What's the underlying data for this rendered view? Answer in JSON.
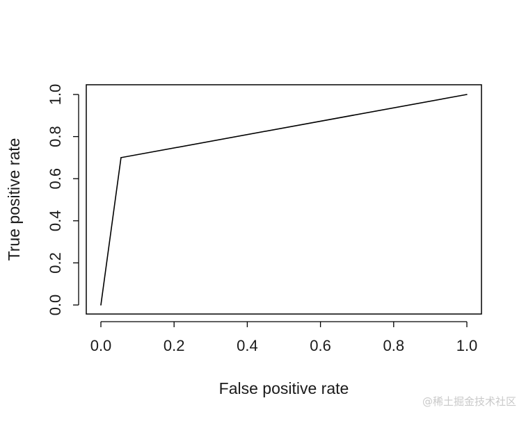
{
  "chart_data": {
    "type": "line",
    "title": "",
    "xlabel": "False positive rate",
    "ylabel": "True positive rate",
    "xlim": [
      0.0,
      1.0
    ],
    "ylim": [
      0.0,
      1.0
    ],
    "x_ticks": [
      "0.0",
      "0.2",
      "0.4",
      "0.6",
      "0.8",
      "1.0"
    ],
    "y_ticks": [
      "0.0",
      "0.2",
      "0.4",
      "0.6",
      "0.8",
      "1.0"
    ],
    "grid": false,
    "series": [
      {
        "points": [
          {
            "x": 0.0,
            "y": 0.0
          },
          {
            "x": 0.055,
            "y": 0.7
          },
          {
            "x": 1.0,
            "y": 1.0
          }
        ],
        "color": "#000000"
      }
    ]
  },
  "watermark": "@稀土掘金技术社区"
}
